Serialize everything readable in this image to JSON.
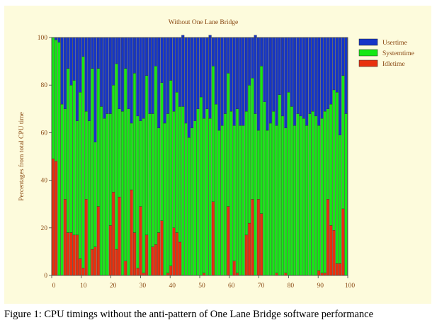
{
  "chart_data": {
    "type": "bar",
    "stacked": true,
    "title": "Without One Lane Bridge",
    "xlabel": "",
    "ylabel": "Percentages from total CPU time",
    "xlim": [
      0,
      100
    ],
    "ylim": [
      0,
      100
    ],
    "x_ticks": [
      0,
      10,
      20,
      30,
      40,
      50,
      60,
      70,
      80,
      90,
      100
    ],
    "y_ticks": [
      0,
      20,
      40,
      60,
      80,
      100
    ],
    "legend_position": "top-right",
    "grid": false,
    "series": [
      {
        "name": "Usertime",
        "color": "#1535c8",
        "values": [
          0,
          1,
          2,
          28,
          30,
          13,
          20,
          18,
          35,
          23,
          8,
          31,
          35,
          13,
          44,
          13,
          29,
          34,
          32,
          32,
          20,
          11,
          30,
          31,
          13,
          30,
          36,
          15,
          33,
          35,
          34,
          16,
          32,
          32,
          12,
          38,
          19,
          36,
          32,
          18,
          31,
          23,
          29,
          30,
          36,
          42,
          38,
          35,
          30,
          25,
          34,
          30,
          35,
          12,
          28,
          39,
          37,
          32,
          15,
          31,
          37,
          30,
          37,
          37,
          31,
          20,
          17,
          33,
          39,
          12,
          27,
          39,
          36,
          31,
          37,
          24,
          33,
          38,
          23,
          29,
          37,
          32,
          33,
          34,
          37,
          32,
          31,
          33,
          37,
          34,
          31,
          30,
          28,
          22,
          23,
          41,
          16,
          32
        ]
      },
      {
        "name": "Systemtime",
        "color": "#15e815",
        "values": [
          51,
          51,
          98,
          72,
          38,
          69,
          62,
          65,
          48,
          70,
          89,
          37,
          65,
          76,
          44,
          58,
          71,
          66,
          68,
          47,
          45,
          78,
          37,
          69,
          81,
          70,
          28,
          67,
          64,
          36,
          65,
          67,
          68,
          56,
          75,
          44,
          58,
          64,
          67,
          78,
          49,
          59,
          57,
          71,
          64,
          58,
          62,
          65,
          70,
          75,
          65,
          70,
          66,
          57,
          72,
          61,
          63,
          68,
          56,
          69,
          57,
          69,
          63,
          63,
          52,
          58,
          51,
          68,
          29,
          62,
          73,
          61,
          64,
          69,
          62,
          76,
          67,
          61,
          77,
          71,
          63,
          68,
          67,
          66,
          63,
          68,
          69,
          67,
          61,
          65,
          68,
          38,
          51,
          59,
          72,
          54,
          56,
          68
        ]
      },
      {
        "name": "Idletime",
        "color": "#e8300e",
        "values": [
          49,
          48,
          0,
          0,
          32,
          18,
          18,
          17,
          17,
          7,
          3,
          32,
          0,
          11,
          12,
          29,
          0,
          0,
          0,
          21,
          35,
          11,
          33,
          0,
          6,
          0,
          36,
          18,
          3,
          29,
          1,
          17,
          0,
          12,
          13,
          18,
          23,
          0,
          1,
          4,
          20,
          18,
          14,
          0,
          0,
          0,
          0,
          0,
          0,
          0,
          1,
          0,
          0,
          31,
          0,
          0,
          0,
          0,
          29,
          0,
          6,
          1,
          0,
          0,
          17,
          22,
          32,
          0,
          32,
          26,
          0,
          0,
          0,
          0,
          1,
          0,
          0,
          1,
          0,
          0,
          0,
          0,
          0,
          0,
          0,
          0,
          0,
          0,
          2,
          1,
          1,
          32,
          21,
          19,
          5,
          5,
          28,
          0
        ]
      }
    ]
  },
  "caption": "Figure 1: CPU timings without the anti-pattern of One Lane Bridge software performance"
}
